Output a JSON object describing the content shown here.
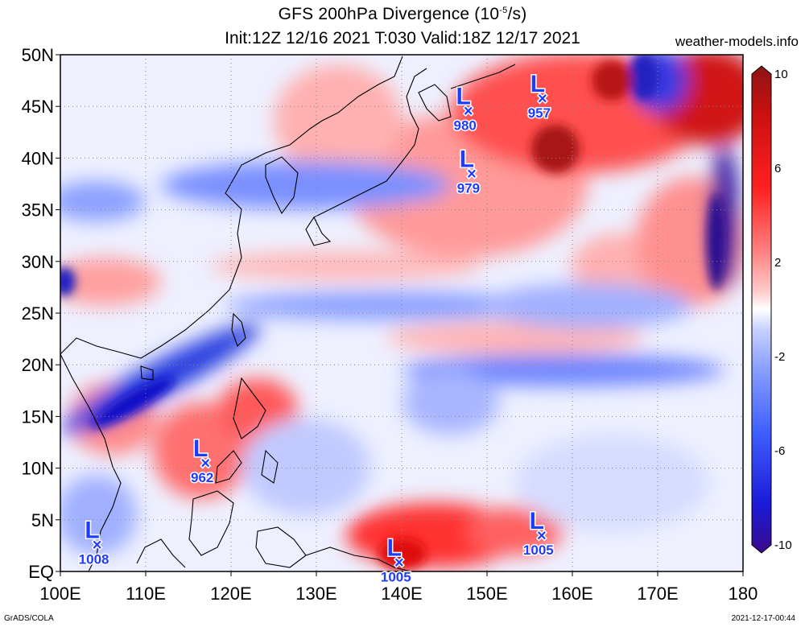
{
  "header": {
    "title_prefix": "GFS 200hPa Divergence (10",
    "title_exp": "-5",
    "title_suffix": "/s)",
    "subtitle": "Init:12Z 12/16 2021 T:030 Valid:18Z 12/17 2021",
    "credit": "weather-models.info"
  },
  "footer": {
    "left": "GrADS/COLA",
    "right": "2021-12-17-00:44"
  },
  "map": {
    "lon_range": [
      100,
      180
    ],
    "lat_range": [
      0,
      50
    ],
    "lon_labels": [
      "100E",
      "110E",
      "120E",
      "130E",
      "140E",
      "150E",
      "160E",
      "170E",
      "180"
    ],
    "lat_labels": [
      "EQ",
      "5N",
      "10N",
      "15N",
      "20N",
      "25N",
      "30N",
      "35N",
      "40N",
      "45N",
      "50N"
    ],
    "grid": true
  },
  "colorbar": {
    "labels": [
      "10",
      "6",
      "2",
      "-2",
      "-6",
      "-10"
    ],
    "range": [
      -10,
      10
    ],
    "colors": [
      "#3a0a8c",
      "#1a1ad8",
      "#4060ff",
      "#8aa0ff",
      "#c8d2ff",
      "#ffffff",
      "#ffc8c8",
      "#ff8080",
      "#ff2020",
      "#cc1010",
      "#8c1414"
    ]
  },
  "lows": [
    {
      "label": "L",
      "value": "1008",
      "lon": 104.3,
      "lat": 2.6
    },
    {
      "label": "L",
      "value": "962",
      "lon": 117.0,
      "lat": 10.5
    },
    {
      "label": "L",
      "value": "1005",
      "lon": 139.7,
      "lat": 0.9
    },
    {
      "label": "L",
      "value": "1005",
      "lon": 156.4,
      "lat": 3.5
    },
    {
      "label": "L",
      "value": "980",
      "lon": 147.8,
      "lat": 44.6
    },
    {
      "label": "L",
      "value": "979",
      "lon": 148.2,
      "lat": 38.5
    },
    {
      "label": "L",
      "value": "957",
      "lon": 156.5,
      "lat": 45.8
    }
  ]
}
